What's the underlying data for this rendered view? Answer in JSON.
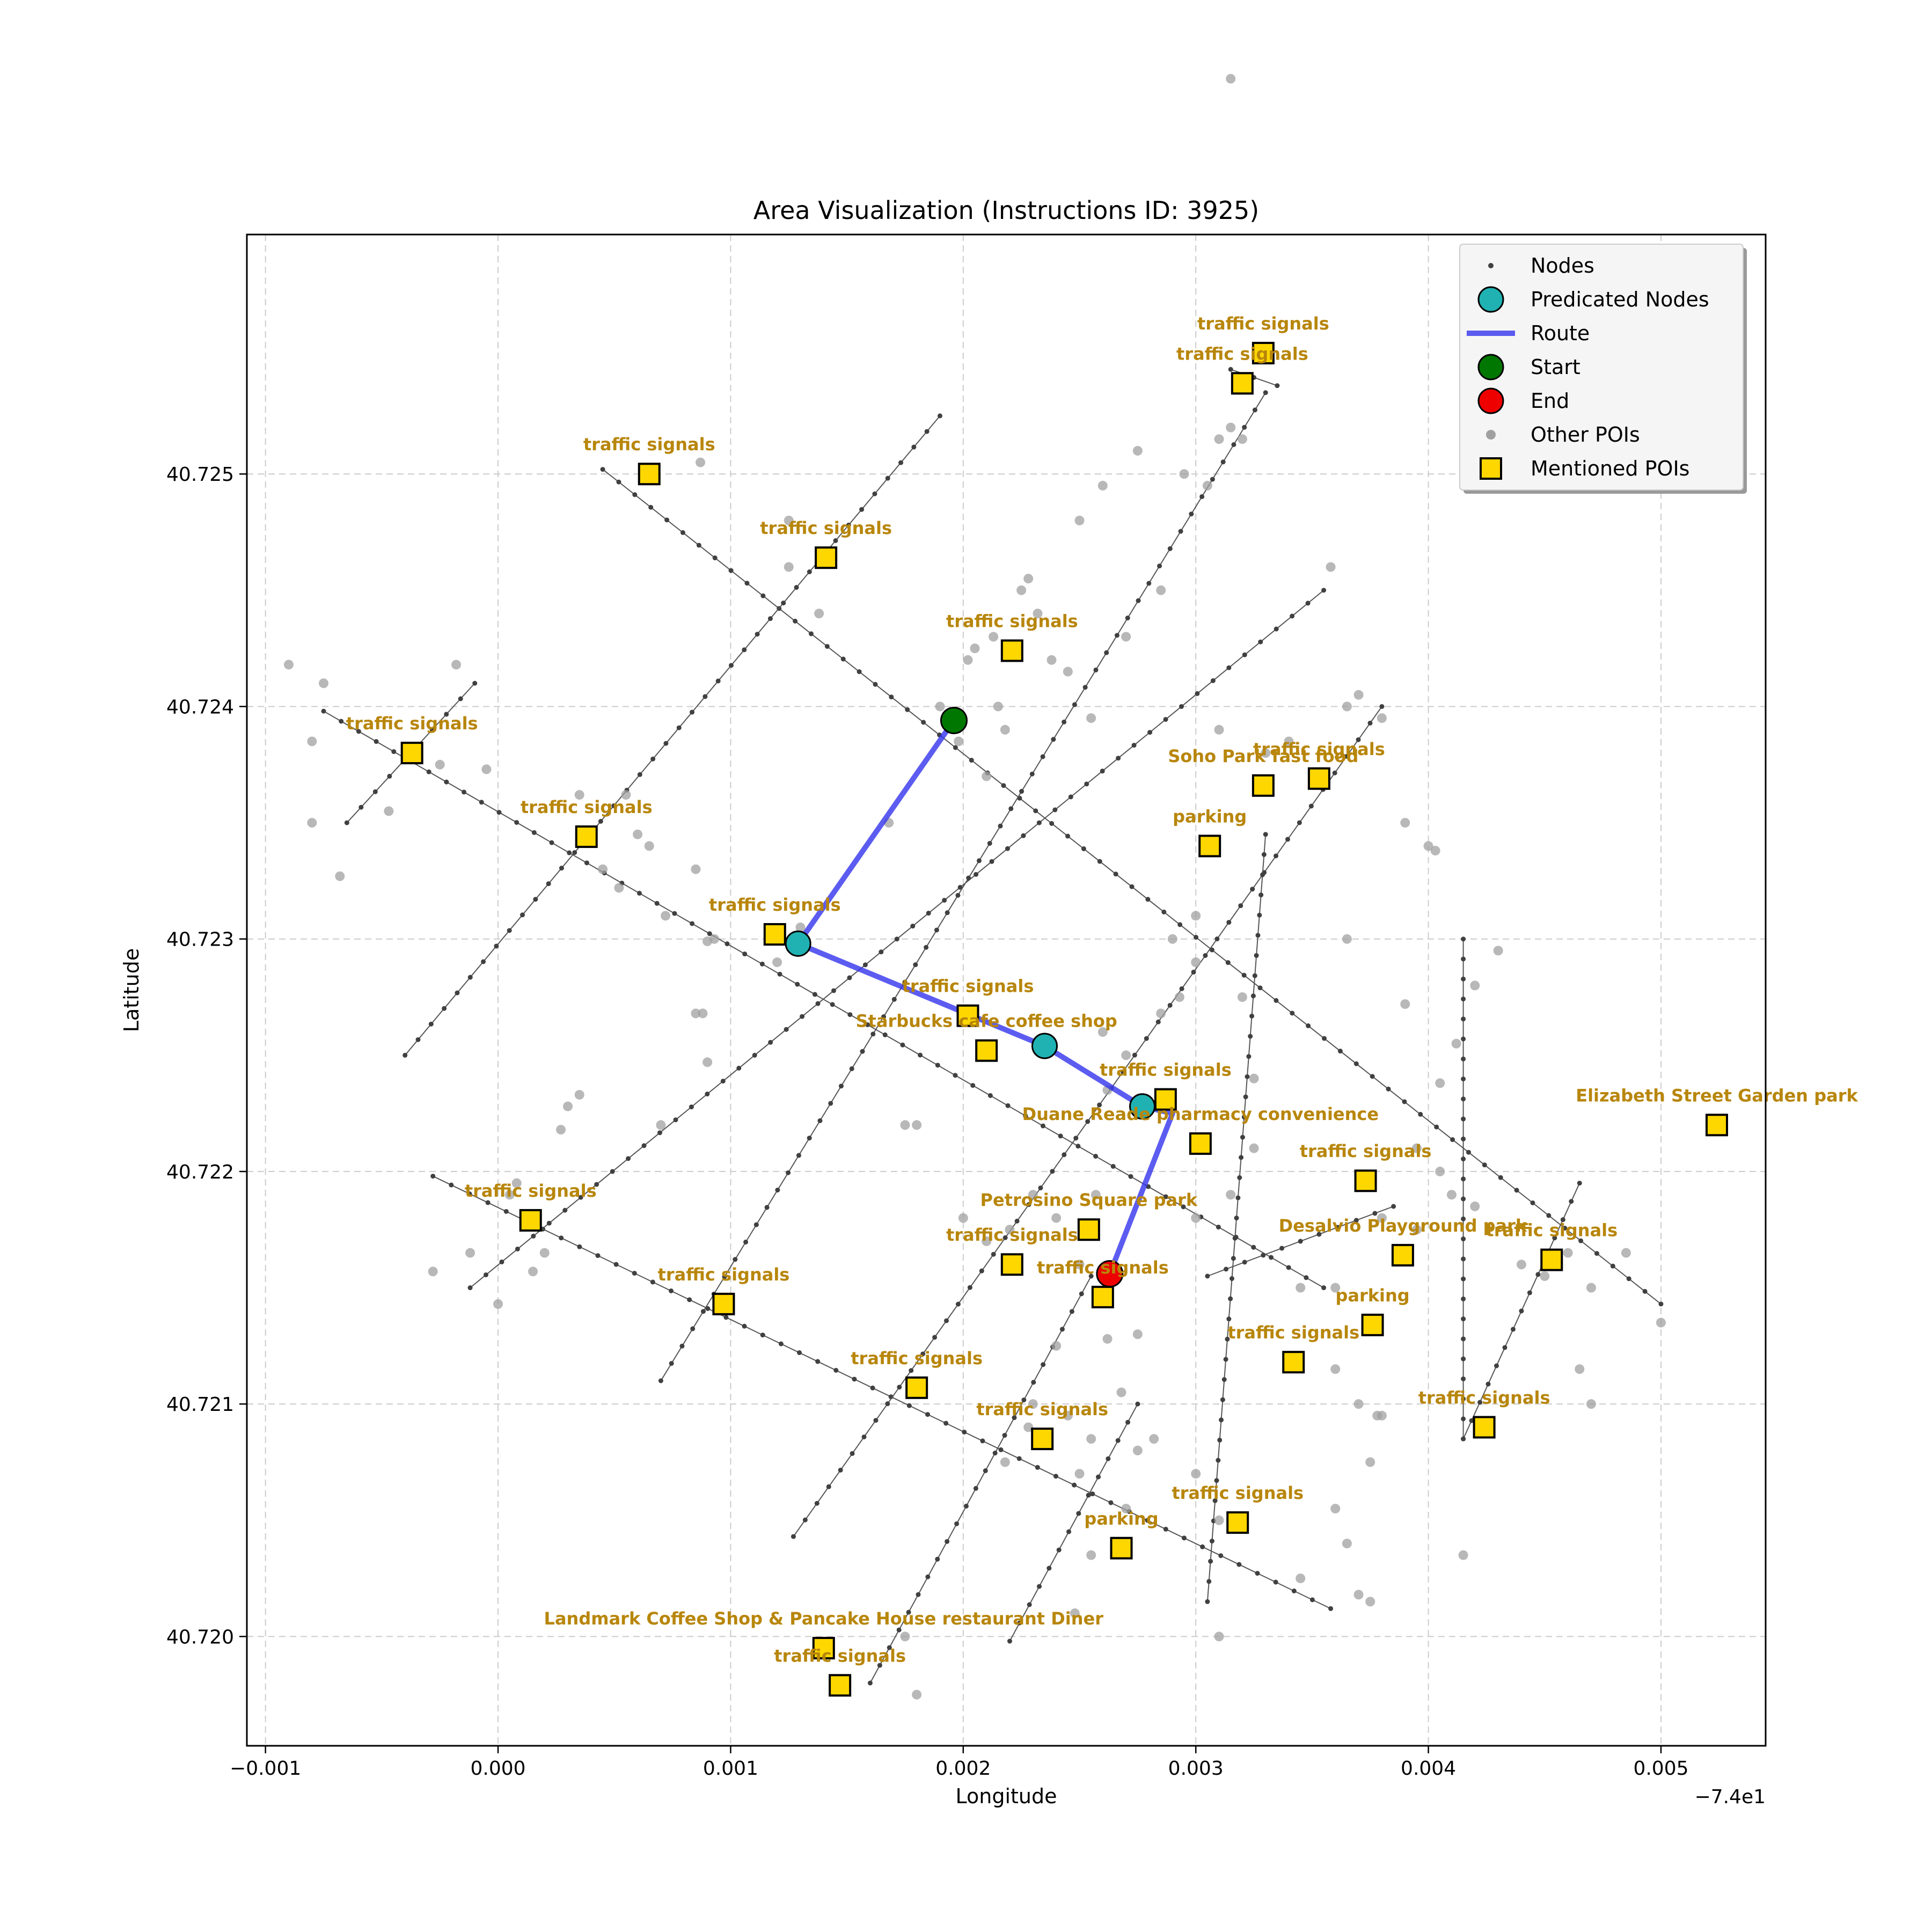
{
  "chart_data": {
    "type": "scatter",
    "title": "Area Visualization (Instructions ID: 3925)",
    "xlabel": "Longitude",
    "ylabel": "Latitude",
    "x_offset_label": "−7.4e1",
    "xlim": [
      -0.00108,
      0.00545
    ],
    "ylim": [
      40.71953,
      40.72603
    ],
    "x_ticks": [
      -0.001,
      0.0,
      0.001,
      0.002,
      0.003,
      0.004,
      0.005
    ],
    "x_tick_labels": [
      "−0.001",
      "0.000",
      "0.001",
      "0.002",
      "0.003",
      "0.004",
      "0.005"
    ],
    "y_ticks": [
      40.72,
      40.721,
      40.722,
      40.723,
      40.724,
      40.725
    ],
    "y_tick_labels": [
      "40.720",
      "40.721",
      "40.722",
      "40.723",
      "40.724",
      "40.725"
    ],
    "grid": true,
    "legend_position": "top-right",
    "legend": [
      {
        "key": "nodes",
        "label": "Nodes"
      },
      {
        "key": "predicated",
        "label": "Predicated Nodes"
      },
      {
        "key": "route",
        "label": "Route"
      },
      {
        "key": "start",
        "label": "Start"
      },
      {
        "key": "end",
        "label": "End"
      },
      {
        "key": "other",
        "label": "Other POIs"
      },
      {
        "key": "mentioned",
        "label": "Mentioned POIs"
      }
    ],
    "colors": {
      "nodes": "#404040",
      "edges": "#555555",
      "predicated": "#20b2b2",
      "route": "#3333ee",
      "start": "#007700",
      "end": "#ee0000",
      "other": "#a0a0a0",
      "mentioned": "#ffd700",
      "poi_label": "#b8860b"
    },
    "streets": [
      [
        [
          -0.00075,
          40.72398
        ],
        [
          0.00355,
          40.7215
        ]
      ],
      [
        [
          -0.00028,
          40.72198
        ],
        [
          0.00358,
          40.72012
        ]
      ],
      [
        [
          0.00045,
          40.72502
        ],
        [
          0.005,
          40.72143
        ]
      ],
      [
        [
          -0.0004,
          40.7225
        ],
        [
          0.0019,
          40.72525
        ]
      ],
      [
        [
          -0.00065,
          40.7235
        ],
        [
          -0.0001,
          40.7241
        ]
      ],
      [
        [
          -0.00012,
          40.7215
        ],
        [
          0.00355,
          40.7245
        ]
      ],
      [
        [
          0.0007,
          40.7211
        ],
        [
          0.0033,
          40.72535
        ]
      ],
      [
        [
          0.00127,
          40.72043
        ],
        [
          0.0038,
          40.724
        ]
      ],
      [
        [
          0.0016,
          40.7198
        ],
        [
          0.00255,
          40.72155
        ]
      ],
      [
        [
          0.0022,
          40.71998
        ],
        [
          0.00275,
          40.721
        ]
      ],
      [
        [
          0.00305,
          40.72015
        ],
        [
          0.0033,
          40.72345
        ]
      ],
      [
        [
          0.00415,
          40.72085
        ],
        [
          0.00415,
          40.723
        ]
      ],
      [
        [
          0.00415,
          40.72085
        ],
        [
          0.00465,
          40.72195
        ]
      ],
      [
        [
          0.00305,
          40.72155
        ],
        [
          0.00385,
          40.72185
        ]
      ],
      [
        [
          0.00315,
          40.72545
        ],
        [
          0.00335,
          40.72538
        ]
      ]
    ],
    "route": [
      [
        0.00196,
        40.72394
      ],
      [
        0.00129,
        40.72298
      ],
      [
        0.00235,
        40.72254
      ],
      [
        0.00277,
        40.72228
      ],
      [
        0.0029,
        40.72225
      ],
      [
        0.00263,
        40.72156
      ]
    ],
    "start": [
      0.00196,
      40.72394
    ],
    "end": [
      0.00263,
      40.72156
    ],
    "predicated_nodes": [
      [
        0.00129,
        40.72298
      ],
      [
        0.00235,
        40.72254
      ],
      [
        0.00277,
        40.72228
      ]
    ],
    "other_pois": [
      [
        -0.0009,
        40.72418
      ],
      [
        -0.00075,
        40.7241
      ],
      [
        -0.0008,
        40.72385
      ],
      [
        -0.0008,
        40.7235
      ],
      [
        -0.00068,
        40.72327
      ],
      [
        -0.00047,
        40.72355
      ],
      [
        -0.00018,
        40.72418
      ],
      [
        -0.00025,
        40.72375
      ],
      [
        -5e-05,
        40.72373
      ],
      [
        0.00035,
        40.72362
      ],
      [
        0.00045,
        40.7233
      ],
      [
        0.00055,
        40.72362
      ],
      [
        0.0006,
        40.72345
      ],
      [
        0.00065,
        40.7234
      ],
      [
        0.00052,
        40.72322
      ],
      [
        0.00072,
        40.7231
      ],
      [
        0.00085,
        40.7233
      ],
      [
        0.0009,
        40.72299
      ],
      [
        0.00093,
        40.723
      ],
      [
        0.00085,
        40.72268
      ],
      [
        0.00088,
        40.72268
      ],
      [
        0.0009,
        40.72247
      ],
      [
        0.0007,
        40.7222
      ],
      [
        0.00035,
        40.72233
      ],
      [
        0.0003,
        40.72228
      ],
      [
        0.00027,
        40.72218
      ],
      [
        8e-05,
        40.72195
      ],
      [
        5e-05,
        40.7219
      ],
      [
        0.0002,
        40.72165
      ],
      [
        0.0,
        40.72143
      ],
      [
        -0.00012,
        40.72165
      ],
      [
        -0.00028,
        40.72157
      ],
      [
        0.00015,
        40.72157
      ],
      [
        0.00087,
        40.72505
      ],
      [
        0.00125,
        40.7248
      ],
      [
        0.00125,
        40.7246
      ],
      [
        0.00138,
        40.7244
      ],
      [
        0.0013,
        40.72305
      ],
      [
        0.0012,
        40.7229
      ],
      [
        0.00168,
        40.7235
      ],
      [
        0.00175,
        40.7222
      ],
      [
        0.0018,
        40.7222
      ],
      [
        0.00202,
        40.7242
      ],
      [
        0.00205,
        40.72425
      ],
      [
        0.00213,
        40.7243
      ],
      [
        0.00215,
        40.724
      ],
      [
        0.00198,
        40.72385
      ],
      [
        0.00218,
        40.7239
      ],
      [
        0.0021,
        40.7237
      ],
      [
        0.0019,
        40.724
      ],
      [
        0.00225,
        40.7245
      ],
      [
        0.00228,
        40.72455
      ],
      [
        0.00232,
        40.7244
      ],
      [
        0.00238,
        40.7242
      ],
      [
        0.00245,
        40.72415
      ],
      [
        0.0025,
        40.7248
      ],
      [
        0.00255,
        40.72395
      ],
      [
        0.0026,
        40.7226
      ],
      [
        0.00262,
        40.72235
      ],
      [
        0.00257,
        40.7219
      ],
      [
        0.0027,
        40.7225
      ],
      [
        0.00275,
        40.7251
      ],
      [
        0.0026,
        40.72495
      ],
      [
        0.00285,
        40.7245
      ],
      [
        0.0027,
        40.7243
      ],
      [
        0.0029,
        40.723
      ],
      [
        0.00285,
        40.72268
      ],
      [
        0.00293,
        40.72275
      ],
      [
        0.003,
        40.7229
      ],
      [
        0.00295,
        40.725
      ],
      [
        0.0031,
        40.72515
      ],
      [
        0.00305,
        40.72495
      ],
      [
        0.00315,
        40.7267
      ],
      [
        0.00315,
        40.7252
      ],
      [
        0.0032,
        40.72515
      ],
      [
        0.0031,
        40.7239
      ],
      [
        0.003,
        40.7231
      ],
      [
        0.0032,
        40.72275
      ],
      [
        0.00325,
        40.7224
      ],
      [
        0.00325,
        40.7221
      ],
      [
        0.0033,
        40.7238
      ],
      [
        0.0034,
        40.72385
      ],
      [
        0.00358,
        40.7246
      ],
      [
        0.00365,
        40.724
      ],
      [
        0.0037,
        40.72405
      ],
      [
        0.0038,
        40.72395
      ],
      [
        0.0039,
        40.7235
      ],
      [
        0.00365,
        40.723
      ],
      [
        0.0039,
        40.72272
      ],
      [
        0.00405,
        40.722
      ],
      [
        0.004,
        40.7234
      ],
      [
        0.00403,
        40.72338
      ],
      [
        0.00412,
        40.72255
      ],
      [
        0.00405,
        40.72238
      ],
      [
        0.0042,
        40.7228
      ],
      [
        0.0043,
        40.72295
      ],
      [
        0.00395,
        40.72175
      ],
      [
        0.0038,
        40.7218
      ],
      [
        0.00395,
        40.7221
      ],
      [
        0.0036,
        40.7215
      ],
      [
        0.0041,
        40.7219
      ],
      [
        0.0042,
        40.72185
      ],
      [
        0.0044,
        40.7216
      ],
      [
        0.0045,
        40.72155
      ],
      [
        0.0046,
        40.72165
      ],
      [
        0.0047,
        40.7215
      ],
      [
        0.00465,
        40.72115
      ],
      [
        0.0047,
        40.721
      ],
      [
        0.00485,
        40.72165
      ],
      [
        0.005,
        40.72135
      ],
      [
        0.00345,
        40.7215
      ],
      [
        0.0036,
        40.72115
      ],
      [
        0.00378,
        40.72095
      ],
      [
        0.0038,
        40.72095
      ],
      [
        0.0037,
        40.721
      ],
      [
        0.00375,
        40.72075
      ],
      [
        0.0036,
        40.72055
      ],
      [
        0.00365,
        40.7204
      ],
      [
        0.00345,
        40.72025
      ],
      [
        0.0037,
        40.72018
      ],
      [
        0.00375,
        40.72015
      ],
      [
        0.00415,
        40.72035
      ],
      [
        0.00315,
        40.7219
      ],
      [
        0.003,
        40.7218
      ],
      [
        0.00275,
        40.7213
      ],
      [
        0.00262,
        40.72128
      ],
      [
        0.0024,
        40.72125
      ],
      [
        0.0023,
        40.721
      ],
      [
        0.00228,
        40.7209
      ],
      [
        0.00245,
        40.72095
      ],
      [
        0.00255,
        40.72085
      ],
      [
        0.00275,
        40.7208
      ],
      [
        0.00282,
        40.72085
      ],
      [
        0.00268,
        40.72105
      ],
      [
        0.0025,
        40.7216
      ],
      [
        0.0023,
        40.7219
      ],
      [
        0.0024,
        40.7218
      ],
      [
        0.002,
        40.7218
      ],
      [
        0.0021,
        40.7217
      ],
      [
        0.0022,
        40.72175
      ],
      [
        0.00218,
        40.72075
      ],
      [
        0.0025,
        40.7207
      ],
      [
        0.0027,
        40.72055
      ],
      [
        0.003,
        40.7207
      ],
      [
        0.0031,
        40.7205
      ],
      [
        0.00255,
        40.72035
      ],
      [
        0.00248,
        40.7201
      ],
      [
        0.0031,
        40.72
      ],
      [
        0.0018,
        40.71975
      ],
      [
        0.00175,
        40.72
      ]
    ],
    "mentioned_pois": [
      {
        "x": 0.00065,
        "y": 40.725,
        "label": "traffic signals"
      },
      {
        "x": 0.00141,
        "y": 40.72464,
        "label": "traffic signals"
      },
      {
        "x": 0.00221,
        "y": 40.72424,
        "label": "traffic signals"
      },
      {
        "x": 0.0032,
        "y": 40.72539,
        "label": "traffic signals"
      },
      {
        "x": 0.00329,
        "y": 40.72552,
        "label": "traffic signals"
      },
      {
        "x": -0.00037,
        "y": 40.7238,
        "label": "traffic signals"
      },
      {
        "x": 0.00038,
        "y": 40.72344,
        "label": "traffic signals"
      },
      {
        "x": 0.00119,
        "y": 40.72302,
        "label": "traffic signals"
      },
      {
        "x": 0.00202,
        "y": 40.72267,
        "label": "traffic signals"
      },
      {
        "x": 0.0021,
        "y": 40.72252,
        "label": "Starbucks   cafe coffee shop"
      },
      {
        "x": 0.00287,
        "y": 40.72231,
        "label": "traffic signals"
      },
      {
        "x": 0.00302,
        "y": 40.72212,
        "label": "Duane Reade pharmacy    convenience"
      },
      {
        "x": 0.00329,
        "y": 40.72366,
        "label": "Soho Park fast food"
      },
      {
        "x": 0.00353,
        "y": 40.72369,
        "label": "traffic signals"
      },
      {
        "x": 0.00306,
        "y": 40.7234,
        "label": "parking"
      },
      {
        "x": 0.00373,
        "y": 40.72196,
        "label": "traffic signals"
      },
      {
        "x": 0.00524,
        "y": 40.7222,
        "label": "Elizabeth Street Garden   park"
      },
      {
        "x": 0.00014,
        "y": 40.72179,
        "label": "traffic signals"
      },
      {
        "x": 0.00097,
        "y": 40.72143,
        "label": "traffic signals"
      },
      {
        "x": 0.00254,
        "y": 40.72175,
        "label": "Petrosino Square   park"
      },
      {
        "x": 0.00221,
        "y": 40.7216,
        "label": "traffic signals"
      },
      {
        "x": 0.0026,
        "y": 40.72146,
        "label": "traffic signals"
      },
      {
        "x": 0.00389,
        "y": 40.72164,
        "label": "Desalvio Playground   park"
      },
      {
        "x": 0.00453,
        "y": 40.72162,
        "label": "traffic signals"
      },
      {
        "x": 0.00376,
        "y": 40.72134,
        "label": "parking"
      },
      {
        "x": 0.00342,
        "y": 40.72118,
        "label": "traffic signals"
      },
      {
        "x": 0.0018,
        "y": 40.72107,
        "label": "traffic signals"
      },
      {
        "x": 0.00234,
        "y": 40.72085,
        "label": "traffic signals"
      },
      {
        "x": 0.00424,
        "y": 40.7209,
        "label": "traffic signals"
      },
      {
        "x": 0.00318,
        "y": 40.72049,
        "label": "traffic signals"
      },
      {
        "x": 0.00268,
        "y": 40.72038,
        "label": "parking"
      },
      {
        "x": 0.0014,
        "y": 40.71995,
        "label": "Landmark Coffee Shop & Pancake House restaurant Diner"
      },
      {
        "x": 0.00147,
        "y": 40.71979,
        "label": "traffic signals"
      }
    ]
  }
}
